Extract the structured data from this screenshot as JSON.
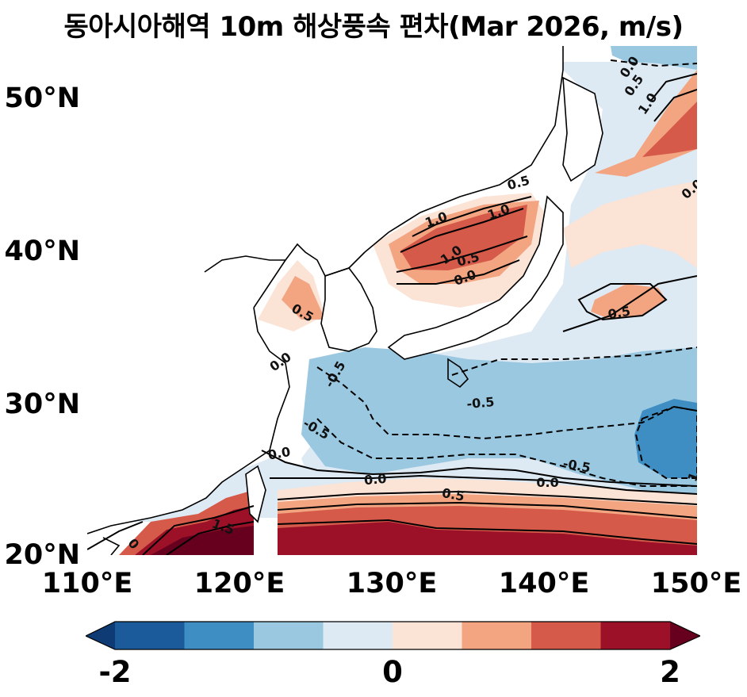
{
  "title": "동아시아해역 10m 해상풍속 편차(Mar 2026, m/s)",
  "axes": {
    "x_ticks": [
      {
        "value": 110,
        "label": "110°E"
      },
      {
        "value": 120,
        "label": "120°E"
      },
      {
        "value": 130,
        "label": "130°E"
      },
      {
        "value": 140,
        "label": "140°E"
      },
      {
        "value": 150,
        "label": "150°E"
      }
    ],
    "y_ticks": [
      {
        "value": 20,
        "label": "20°N"
      },
      {
        "value": 30,
        "label": "30°N"
      },
      {
        "value": 40,
        "label": "40°N"
      },
      {
        "value": 50,
        "label": "50°N"
      }
    ],
    "lon_range": [
      110,
      150
    ],
    "lat_range": [
      20,
      53.3
    ]
  },
  "colorbar": {
    "labels": [
      {
        "value": -2,
        "text": "-2"
      },
      {
        "value": 0,
        "text": "0"
      },
      {
        "value": 2,
        "text": "2"
      }
    ],
    "levels": [
      -2,
      -1.5,
      -1,
      -0.5,
      0,
      0.5,
      1,
      1.5,
      2
    ],
    "colors": [
      "#1b5a9b",
      "#3f8ec3",
      "#9ac8e0",
      "#dde9f3",
      "#fbe3d6",
      "#f3a481",
      "#d55a4a",
      "#9c1127"
    ],
    "under_color": "#0e3b73",
    "over_color": "#67001f",
    "extend": "both"
  },
  "contour_labels": [
    {
      "text": "0.0",
      "lon": 145.6,
      "lat": 51.9,
      "rot": -55
    },
    {
      "text": "0.5",
      "lon": 145.9,
      "lat": 50.7,
      "rot": -55
    },
    {
      "text": "1.0",
      "lon": 146.8,
      "lat": 49.5,
      "rot": -55
    },
    {
      "text": "0.5",
      "lon": 138.3,
      "lat": 44.3,
      "rot": -15
    },
    {
      "text": "1.0",
      "lon": 132.9,
      "lat": 41.9,
      "rot": -20
    },
    {
      "text": "1.0",
      "lon": 137.0,
      "lat": 42.4,
      "rot": -20
    },
    {
      "text": "0.0",
      "lon": 149.7,
      "lat": 43.9,
      "rot": -40
    },
    {
      "text": "1.0",
      "lon": 133.9,
      "lat": 39.6,
      "rot": -35
    },
    {
      "text": "0.5",
      "lon": 135.0,
      "lat": 39.3,
      "rot": -15
    },
    {
      "text": "0.0",
      "lon": 134.8,
      "lat": 38.1,
      "rot": -20
    },
    {
      "text": "0.5",
      "lon": 124.1,
      "lat": 35.8,
      "rot": 30
    },
    {
      "text": "0.5",
      "lon": 144.9,
      "lat": 35.8,
      "rot": -10
    },
    {
      "text": "0.0",
      "lon": 122.7,
      "lat": 32.6,
      "rot": -35
    },
    {
      "text": "-0.5",
      "lon": 126.3,
      "lat": 31.8,
      "rot": -60
    },
    {
      "text": "-0.5",
      "lon": 135.8,
      "lat": 29.9,
      "rot": -5
    },
    {
      "text": "-0.5",
      "lon": 125.0,
      "lat": 28.2,
      "rot": 30
    },
    {
      "text": "0.0",
      "lon": 122.6,
      "lat": 26.6,
      "rot": -10
    },
    {
      "text": "-0.5",
      "lon": 142.1,
      "lat": 25.8,
      "rot": 10
    },
    {
      "text": "0.0",
      "lon": 128.9,
      "lat": 24.9,
      "rot": -5
    },
    {
      "text": "0.0",
      "lon": 140.2,
      "lat": 24.7,
      "rot": 0
    },
    {
      "text": "1",
      "lon": 149.8,
      "lat": 25.1,
      "rot": -70
    },
    {
      "text": "0.5",
      "lon": 134.0,
      "lat": 23.9,
      "rot": 10
    },
    {
      "text": "1.5",
      "lon": 118.9,
      "lat": 21.8,
      "rot": 20
    },
    {
      "text": "0",
      "lon": 113.0,
      "lat": 20.7,
      "rot": 50
    }
  ]
}
